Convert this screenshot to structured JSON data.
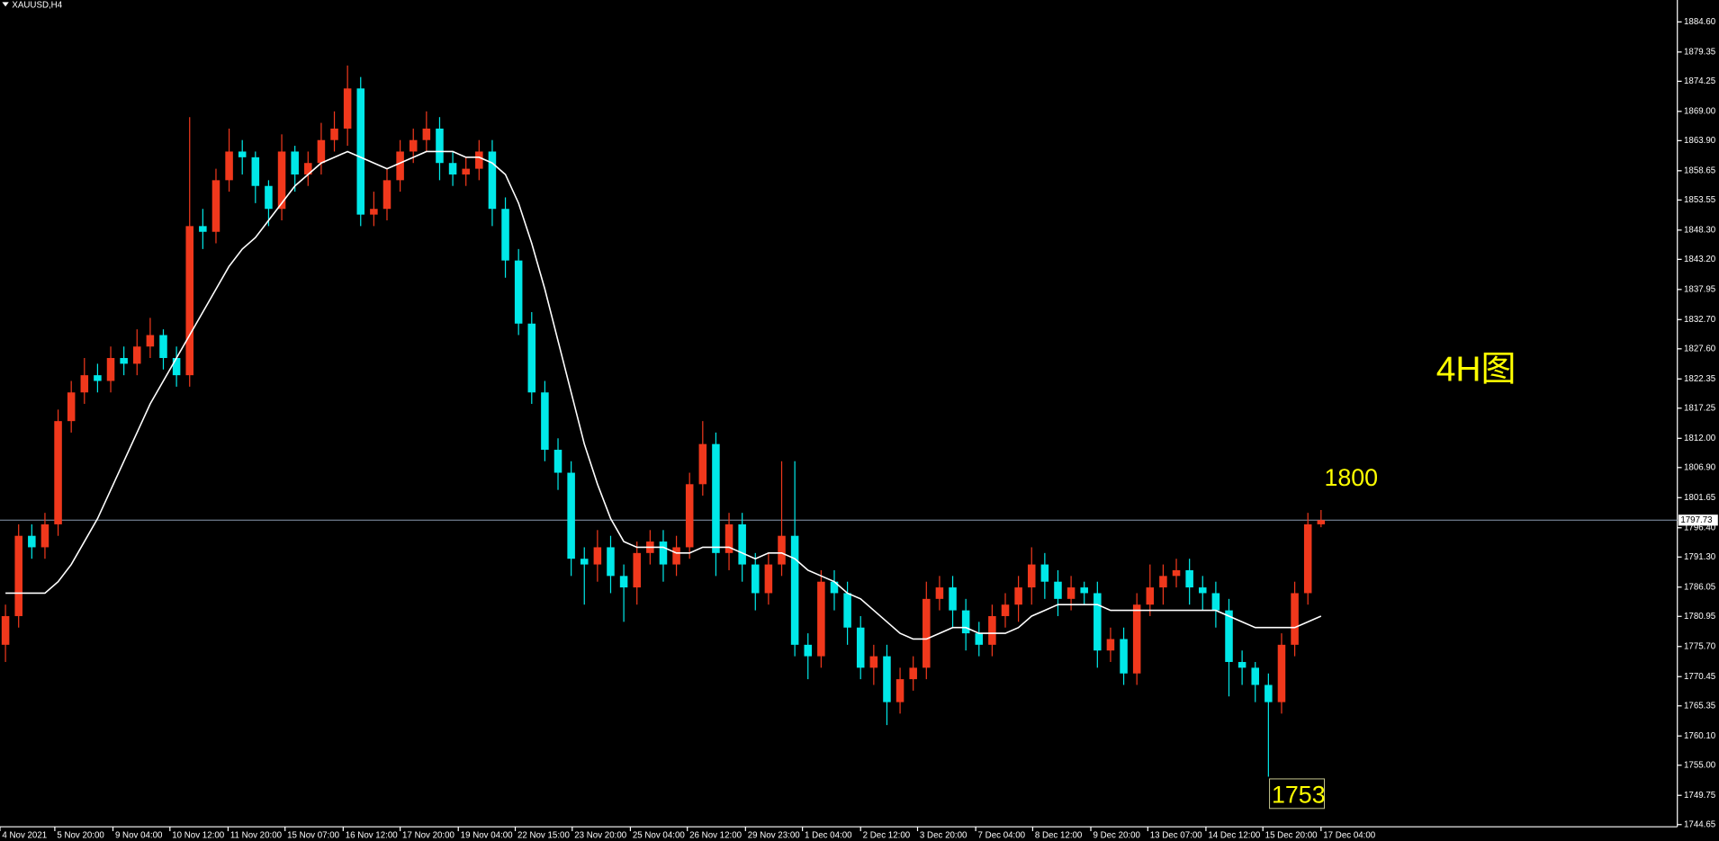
{
  "chart_data": {
    "type": "candlestick",
    "title": "XAUUSD,H4",
    "label_4h": "4H图",
    "level_high": 1800,
    "level_low": 1753,
    "current_price": 1797.73,
    "up_color": "#f0381c",
    "down_color": "#00e8e8",
    "ma_color": "#ffffff",
    "annotation_color": "#ffff00",
    "grid": false,
    "ylim": [
      1744.27,
      1888.42
    ],
    "yticks": [
      {
        "value": 1884.6,
        "label": "1884.60"
      },
      {
        "value": 1879.35,
        "label": "1879.35"
      },
      {
        "value": 1874.25,
        "label": "1874.25"
      },
      {
        "value": 1869.0,
        "label": "1869.00"
      },
      {
        "value": 1863.9,
        "label": "1863.90"
      },
      {
        "value": 1858.65,
        "label": "1858.65"
      },
      {
        "value": 1853.55,
        "label": "1853.55"
      },
      {
        "value": 1848.3,
        "label": "1848.30"
      },
      {
        "value": 1843.2,
        "label": "1843.20"
      },
      {
        "value": 1837.95,
        "label": "1837.95"
      },
      {
        "value": 1832.7,
        "label": "1832.70"
      },
      {
        "value": 1827.6,
        "label": "1827.60"
      },
      {
        "value": 1822.35,
        "label": "1822.35"
      },
      {
        "value": 1817.25,
        "label": "1817.25"
      },
      {
        "value": 1812.0,
        "label": "1812.00"
      },
      {
        "value": 1806.9,
        "label": "1806.90"
      },
      {
        "value": 1801.65,
        "label": "1801.65"
      },
      {
        "value": 1796.4,
        "label": "1796.40"
      },
      {
        "value": 1791.3,
        "label": "1791.30"
      },
      {
        "value": 1786.05,
        "label": "1786.05"
      },
      {
        "value": 1780.95,
        "label": "1780.95"
      },
      {
        "value": 1775.7,
        "label": "1775.70"
      },
      {
        "value": 1770.45,
        "label": "1770.45"
      },
      {
        "value": 1765.35,
        "label": "1765.35"
      },
      {
        "value": 1760.1,
        "label": "1760.10"
      },
      {
        "value": 1755.0,
        "label": "1755.00"
      },
      {
        "value": 1749.75,
        "label": "1749.75"
      },
      {
        "value": 1744.65,
        "label": "1744.65"
      }
    ],
    "xticks": [
      {
        "value": -0.42,
        "label": "4 Nov 2021"
      },
      {
        "value": 3.75,
        "label": "5 Nov 20:00"
      },
      {
        "value": 8.17,
        "label": "9 Nov 04:00"
      },
      {
        "value": 12.5,
        "label": "10 Nov 12:00"
      },
      {
        "value": 16.92,
        "label": "11 Nov 20:00"
      },
      {
        "value": 21.25,
        "label": "15 Nov 07:00"
      },
      {
        "value": 25.67,
        "label": "16 Nov 12:00"
      },
      {
        "value": 30,
        "label": "17 Nov 20:00"
      },
      {
        "value": 34.42,
        "label": "19 Nov 04:00"
      },
      {
        "value": 38.75,
        "label": "22 Nov 15:00"
      },
      {
        "value": 43.08,
        "label": "23 Nov 20:00"
      },
      {
        "value": 47.5,
        "label": "25 Nov 04:00"
      },
      {
        "value": 51.83,
        "label": "26 Nov 12:00"
      },
      {
        "value": 56.25,
        "label": "29 Nov 23:00"
      },
      {
        "value": 60.58,
        "label": "1 Dec 04:00"
      },
      {
        "value": 65,
        "label": "2 Dec 12:00"
      },
      {
        "value": 69.33,
        "label": "3 Dec 20:00"
      },
      {
        "value": 73.75,
        "label": "7 Dec 04:00"
      },
      {
        "value": 78.08,
        "label": "8 Dec 12:00"
      },
      {
        "value": 82.5,
        "label": "9 Dec 20:00"
      },
      {
        "value": 86.83,
        "label": "13 Dec 07:00"
      },
      {
        "value": 91.25,
        "label": "14 Dec 12:00"
      },
      {
        "value": 95.58,
        "label": "15 Dec 20:00"
      },
      {
        "value": 100,
        "label": "17 Dec 04:00"
      }
    ],
    "open": [
      1776,
      1781,
      1795,
      1793,
      1797,
      1815,
      1820,
      1823,
      1822,
      1826,
      1825,
      1828,
      1830,
      1826,
      1823,
      1849,
      1848,
      1857,
      1862,
      1861,
      1856,
      1852,
      1862,
      1858,
      1860,
      1864,
      1866,
      1873,
      1851,
      1852,
      1857,
      1862,
      1864,
      1866,
      1860,
      1858,
      1859,
      1862,
      1852,
      1843,
      1832,
      1820,
      1810,
      1806,
      1791,
      1790,
      1793,
      1788,
      1786,
      1792,
      1794,
      1790,
      1793,
      1804,
      1811,
      1792,
      1797,
      1790,
      1785,
      1790,
      1795,
      1776,
      1774,
      1787,
      1785,
      1779,
      1772,
      1774,
      1766,
      1770,
      1772,
      1784,
      1786,
      1782,
      1778,
      1776,
      1781,
      1783,
      1786,
      1790,
      1787,
      1784,
      1786,
      1785,
      1775,
      1777,
      1771,
      1783,
      1786,
      1788,
      1789,
      1786,
      1785,
      1782,
      1773,
      1772,
      1769,
      1766,
      1776,
      1785,
      1797
    ],
    "high": [
      1783,
      1797,
      1797,
      1799,
      1817,
      1822,
      1826,
      1825,
      1828,
      1828,
      1831,
      1833,
      1831,
      1828,
      1868,
      1852,
      1859,
      1866,
      1864,
      1862,
      1857,
      1865,
      1863,
      1862,
      1867,
      1869,
      1877,
      1875,
      1855,
      1859,
      1864,
      1866,
      1869,
      1868,
      1862,
      1861,
      1864,
      1864,
      1854,
      1845,
      1834,
      1822,
      1812,
      1808,
      1793,
      1796,
      1795,
      1790,
      1794,
      1796,
      1796,
      1795,
      1806,
      1815,
      1813,
      1799,
      1799,
      1792,
      1792,
      1808,
      1808,
      1778,
      1789,
      1789,
      1787,
      1781,
      1776,
      1776,
      1772,
      1774,
      1787,
      1788,
      1788,
      1784,
      1780,
      1783,
      1785,
      1788,
      1793,
      1792,
      1789,
      1788,
      1787,
      1787,
      1779,
      1779,
      1785,
      1790,
      1790,
      1791,
      1791,
      1788,
      1787,
      1784,
      1775,
      1773,
      1771,
      1778,
      1787,
      1799,
      1799.5
    ],
    "low": [
      1773,
      1779,
      1791,
      1791,
      1795,
      1813,
      1818,
      1820,
      1820,
      1823,
      1823,
      1826,
      1824,
      1821,
      1821,
      1845,
      1846,
      1855,
      1858,
      1853,
      1849,
      1850,
      1855,
      1856,
      1858,
      1862,
      1863,
      1849,
      1849,
      1850,
      1855,
      1860,
      1862,
      1857,
      1856,
      1856,
      1857,
      1849,
      1840,
      1830,
      1818,
      1808,
      1803,
      1788,
      1783,
      1787,
      1785,
      1780,
      1783,
      1790,
      1787,
      1788,
      1791,
      1802,
      1788,
      1789,
      1787,
      1782,
      1783,
      1788,
      1774,
      1770,
      1772,
      1782,
      1776,
      1770,
      1769,
      1762,
      1764,
      1768,
      1770,
      1782,
      1779,
      1775,
      1774,
      1774,
      1779,
      1780,
      1783,
      1784,
      1781,
      1782,
      1783,
      1772,
      1773,
      1769,
      1769,
      1781,
      1783,
      1786,
      1783,
      1782,
      1779,
      1767,
      1769,
      1766,
      1753,
      1764,
      1774,
      1783,
      1796.5
    ],
    "close": [
      1781,
      1795,
      1793,
      1797,
      1815,
      1820,
      1823,
      1822,
      1826,
      1825,
      1828,
      1830,
      1826,
      1823,
      1849,
      1848,
      1857,
      1862,
      1861,
      1856,
      1852,
      1862,
      1858,
      1860,
      1864,
      1866,
      1873,
      1851,
      1852,
      1857,
      1862,
      1864,
      1866,
      1860,
      1858,
      1859,
      1862,
      1852,
      1843,
      1832,
      1820,
      1810,
      1806,
      1791,
      1790,
      1793,
      1788,
      1786,
      1792,
      1794,
      1790,
      1793,
      1804,
      1811,
      1792,
      1797,
      1790,
      1785,
      1790,
      1795,
      1776,
      1774,
      1787,
      1785,
      1779,
      1772,
      1774,
      1766,
      1770,
      1772,
      1784,
      1786,
      1782,
      1778,
      1776,
      1781,
      1783,
      1786,
      1790,
      1787,
      1784,
      1786,
      1785,
      1775,
      1777,
      1771,
      1783,
      1786,
      1788,
      1789,
      1786,
      1785,
      1782,
      1773,
      1772,
      1769,
      1766,
      1776,
      1785,
      1797,
      1797.73
    ],
    "ma": [
      1785,
      1785,
      1785,
      1785,
      1787,
      1790,
      1794,
      1798,
      1803,
      1808,
      1813,
      1818,
      1822,
      1826,
      1830,
      1834,
      1838,
      1842,
      1845,
      1847,
      1850,
      1853,
      1856,
      1858,
      1860,
      1861,
      1862,
      1861,
      1860,
      1859,
      1860,
      1861,
      1862,
      1862,
      1862,
      1861,
      1861,
      1860,
      1858,
      1853,
      1846,
      1838,
      1829,
      1820,
      1811,
      1804,
      1798,
      1794,
      1793,
      1793,
      1793,
      1792,
      1792,
      1793,
      1793,
      1793,
      1792,
      1791,
      1792,
      1792,
      1791,
      1789,
      1788,
      1787,
      1785,
      1784,
      1782,
      1780,
      1778,
      1777,
      1777,
      1778,
      1779,
      1779,
      1778,
      1778,
      1778,
      1779,
      1781,
      1782,
      1783,
      1783,
      1783,
      1783,
      1782,
      1782,
      1782,
      1782,
      1782,
      1782,
      1782,
      1782,
      1782,
      1781,
      1780,
      1779,
      1779,
      1779,
      1779,
      1780,
      1781
    ]
  }
}
